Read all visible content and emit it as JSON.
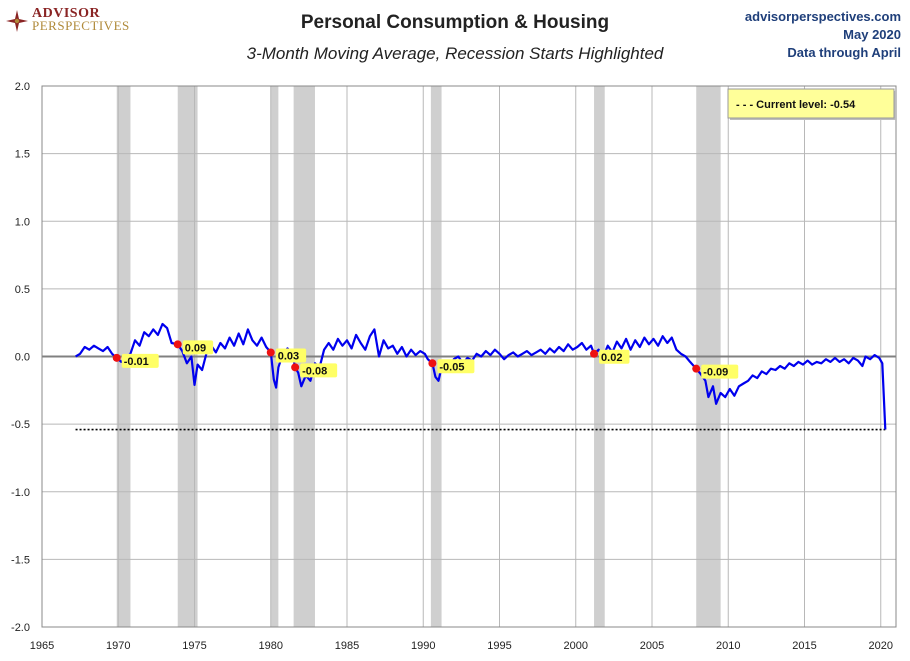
{
  "brand": {
    "line1": "ADVISOR",
    "line2": "PERSPECTIVES"
  },
  "header": {
    "title": "Personal Consumption & Housing",
    "subtitle": "3-Month Moving Average, Recession Starts Highlighted"
  },
  "source": {
    "site": "advisorperspectives.com",
    "date": "May 2020",
    "note": "Data through April"
  },
  "colors": {
    "line": "#0000ee",
    "recession": "#cfcfcf",
    "marker": "#ee1111",
    "label_bg": "#ffff66",
    "legend_bg": "#ffff99"
  },
  "chart_data": {
    "type": "line",
    "title": "Personal Consumption & Housing",
    "subtitle": "3-Month Moving Average, Recession Starts Highlighted",
    "xlim": [
      1965,
      2021
    ],
    "ylim": [
      -2.0,
      2.0
    ],
    "x_ticks": [
      1965,
      1970,
      1975,
      1980,
      1985,
      1990,
      1995,
      2000,
      2005,
      2010,
      2015,
      2020
    ],
    "y_ticks": [
      "2.0",
      "1.5",
      "1.0",
      "0.5",
      "0.0",
      "-0.5",
      "-1.0",
      "-1.5",
      "-2.0"
    ],
    "y_tick_values": [
      2.0,
      1.5,
      1.0,
      0.5,
      0.0,
      -0.5,
      -1.0,
      -1.5,
      -2.0
    ],
    "grid": true,
    "legend": {
      "label": "- - -  Current level:  -0.54",
      "value": -0.54,
      "position": "top-right"
    },
    "current_level": -0.54,
    "recessions": [
      [
        1969.9,
        1970.8
      ],
      [
        1973.9,
        1975.2
      ],
      [
        1980.0,
        1980.5
      ],
      [
        1981.5,
        1982.9
      ],
      [
        1990.5,
        1991.2
      ],
      [
        2001.2,
        2001.9
      ],
      [
        2007.9,
        2009.5
      ]
    ],
    "recession_starts": [
      {
        "x": 1969.9,
        "y": -0.01,
        "label": "-0.01"
      },
      {
        "x": 1973.9,
        "y": 0.09,
        "label": "0.09"
      },
      {
        "x": 1980.0,
        "y": 0.03,
        "label": "0.03"
      },
      {
        "x": 1981.6,
        "y": -0.08,
        "label": "-0.08"
      },
      {
        "x": 1990.6,
        "y": -0.05,
        "label": "-0.05"
      },
      {
        "x": 2001.2,
        "y": 0.02,
        "label": "0.02"
      },
      {
        "x": 2007.9,
        "y": -0.09,
        "label": "-0.09"
      }
    ],
    "series": [
      {
        "values": [
          [
            1967.2,
            0.0
          ],
          [
            1967.5,
            0.02
          ],
          [
            1967.8,
            0.07
          ],
          [
            1968.1,
            0.05
          ],
          [
            1968.4,
            0.08
          ],
          [
            1968.7,
            0.06
          ],
          [
            1969.0,
            0.04
          ],
          [
            1969.3,
            0.07
          ],
          [
            1969.6,
            0.02
          ],
          [
            1969.9,
            -0.01
          ],
          [
            1970.2,
            -0.04
          ],
          [
            1970.5,
            -0.01
          ],
          [
            1970.8,
            0.02
          ],
          [
            1971.1,
            0.12
          ],
          [
            1971.4,
            0.08
          ],
          [
            1971.7,
            0.18
          ],
          [
            1972.0,
            0.15
          ],
          [
            1972.3,
            0.2
          ],
          [
            1972.6,
            0.16
          ],
          [
            1972.9,
            0.24
          ],
          [
            1973.2,
            0.21
          ],
          [
            1973.5,
            0.1
          ],
          [
            1973.9,
            0.09
          ],
          [
            1974.2,
            0.04
          ],
          [
            1974.5,
            -0.05
          ],
          [
            1974.8,
            0.0
          ],
          [
            1975.0,
            -0.21
          ],
          [
            1975.2,
            -0.06
          ],
          [
            1975.5,
            -0.1
          ],
          [
            1975.8,
            0.03
          ],
          [
            1976.1,
            0.08
          ],
          [
            1976.4,
            0.03
          ],
          [
            1976.7,
            0.1
          ],
          [
            1977.0,
            0.06
          ],
          [
            1977.3,
            0.14
          ],
          [
            1977.6,
            0.08
          ],
          [
            1977.9,
            0.17
          ],
          [
            1978.2,
            0.09
          ],
          [
            1978.5,
            0.2
          ],
          [
            1978.8,
            0.12
          ],
          [
            1979.1,
            0.08
          ],
          [
            1979.4,
            0.14
          ],
          [
            1979.7,
            0.07
          ],
          [
            1980.0,
            0.03
          ],
          [
            1980.2,
            -0.17
          ],
          [
            1980.35,
            -0.23
          ],
          [
            1980.5,
            -0.08
          ],
          [
            1980.8,
            0.02
          ],
          [
            1981.1,
            0.06
          ],
          [
            1981.4,
            0.03
          ],
          [
            1981.6,
            -0.08
          ],
          [
            1981.8,
            -0.12
          ],
          [
            1982.0,
            -0.22
          ],
          [
            1982.3,
            -0.14
          ],
          [
            1982.6,
            -0.18
          ],
          [
            1982.9,
            -0.05
          ],
          [
            1983.2,
            -0.08
          ],
          [
            1983.5,
            0.05
          ],
          [
            1983.8,
            0.1
          ],
          [
            1984.1,
            0.05
          ],
          [
            1984.4,
            0.13
          ],
          [
            1984.7,
            0.08
          ],
          [
            1985.0,
            0.12
          ],
          [
            1985.3,
            0.06
          ],
          [
            1985.6,
            0.16
          ],
          [
            1985.9,
            0.1
          ],
          [
            1986.2,
            0.05
          ],
          [
            1986.5,
            0.15
          ],
          [
            1986.8,
            0.2
          ],
          [
            1987.1,
            0.0
          ],
          [
            1987.4,
            0.12
          ],
          [
            1987.7,
            0.06
          ],
          [
            1988.0,
            0.08
          ],
          [
            1988.3,
            0.02
          ],
          [
            1988.6,
            0.07
          ],
          [
            1988.9,
            0.0
          ],
          [
            1989.2,
            0.05
          ],
          [
            1989.5,
            0.01
          ],
          [
            1989.8,
            0.04
          ],
          [
            1990.1,
            0.02
          ],
          [
            1990.3,
            -0.02
          ],
          [
            1990.6,
            -0.05
          ],
          [
            1990.8,
            -0.15
          ],
          [
            1991.0,
            -0.18
          ],
          [
            1991.2,
            -0.08
          ],
          [
            1991.5,
            -0.05
          ],
          [
            1991.8,
            -0.09
          ],
          [
            1992.0,
            -0.02
          ],
          [
            1992.3,
            0.0
          ],
          [
            1992.6,
            -0.05
          ],
          [
            1992.9,
            -0.01
          ],
          [
            1993.2,
            -0.03
          ],
          [
            1993.5,
            0.02
          ],
          [
            1993.8,
            0.0
          ],
          [
            1994.1,
            0.04
          ],
          [
            1994.4,
            0.01
          ],
          [
            1994.7,
            0.05
          ],
          [
            1995.0,
            0.02
          ],
          [
            1995.3,
            -0.02
          ],
          [
            1995.6,
            0.01
          ],
          [
            1995.9,
            0.03
          ],
          [
            1996.2,
            0.0
          ],
          [
            1996.5,
            0.02
          ],
          [
            1996.8,
            0.04
          ],
          [
            1997.1,
            0.01
          ],
          [
            1997.4,
            0.03
          ],
          [
            1997.7,
            0.05
          ],
          [
            1998.0,
            0.02
          ],
          [
            1998.3,
            0.06
          ],
          [
            1998.6,
            0.03
          ],
          [
            1998.9,
            0.07
          ],
          [
            1999.2,
            0.04
          ],
          [
            1999.5,
            0.09
          ],
          [
            1999.8,
            0.05
          ],
          [
            2000.1,
            0.07
          ],
          [
            2000.4,
            0.1
          ],
          [
            2000.7,
            0.05
          ],
          [
            2001.0,
            0.08
          ],
          [
            2001.2,
            0.02
          ],
          [
            2001.5,
            0.05
          ],
          [
            2001.8,
            0.0
          ],
          [
            2002.1,
            0.08
          ],
          [
            2002.4,
            0.03
          ],
          [
            2002.7,
            0.11
          ],
          [
            2003.0,
            0.06
          ],
          [
            2003.3,
            0.13
          ],
          [
            2003.6,
            0.05
          ],
          [
            2003.9,
            0.12
          ],
          [
            2004.2,
            0.07
          ],
          [
            2004.5,
            0.14
          ],
          [
            2004.8,
            0.09
          ],
          [
            2005.1,
            0.13
          ],
          [
            2005.4,
            0.08
          ],
          [
            2005.7,
            0.15
          ],
          [
            2006.0,
            0.1
          ],
          [
            2006.3,
            0.14
          ],
          [
            2006.6,
            0.05
          ],
          [
            2006.9,
            0.02
          ],
          [
            2007.2,
            0.0
          ],
          [
            2007.5,
            -0.04
          ],
          [
            2007.9,
            -0.09
          ],
          [
            2008.2,
            -0.13
          ],
          [
            2008.5,
            -0.18
          ],
          [
            2008.7,
            -0.3
          ],
          [
            2009.0,
            -0.22
          ],
          [
            2009.2,
            -0.35
          ],
          [
            2009.5,
            -0.27
          ],
          [
            2009.8,
            -0.3
          ],
          [
            2010.1,
            -0.24
          ],
          [
            2010.4,
            -0.29
          ],
          [
            2010.7,
            -0.22
          ],
          [
            2011.0,
            -0.2
          ],
          [
            2011.3,
            -0.18
          ],
          [
            2011.6,
            -0.14
          ],
          [
            2011.9,
            -0.16
          ],
          [
            2012.2,
            -0.11
          ],
          [
            2012.5,
            -0.13
          ],
          [
            2012.8,
            -0.09
          ],
          [
            2013.1,
            -0.1
          ],
          [
            2013.4,
            -0.07
          ],
          [
            2013.7,
            -0.09
          ],
          [
            2014.0,
            -0.05
          ],
          [
            2014.3,
            -0.07
          ],
          [
            2014.6,
            -0.04
          ],
          [
            2014.9,
            -0.06
          ],
          [
            2015.2,
            -0.03
          ],
          [
            2015.5,
            -0.06
          ],
          [
            2015.8,
            -0.04
          ],
          [
            2016.1,
            -0.05
          ],
          [
            2016.4,
            -0.02
          ],
          [
            2016.7,
            -0.04
          ],
          [
            2017.0,
            -0.01
          ],
          [
            2017.3,
            -0.04
          ],
          [
            2017.6,
            -0.02
          ],
          [
            2017.9,
            -0.05
          ],
          [
            2018.2,
            -0.01
          ],
          [
            2018.5,
            -0.03
          ],
          [
            2018.8,
            -0.07
          ],
          [
            2019.0,
            0.0
          ],
          [
            2019.3,
            -0.02
          ],
          [
            2019.6,
            0.01
          ],
          [
            2019.9,
            -0.01
          ],
          [
            2020.1,
            -0.05
          ],
          [
            2020.3,
            -0.54
          ]
        ]
      }
    ]
  }
}
